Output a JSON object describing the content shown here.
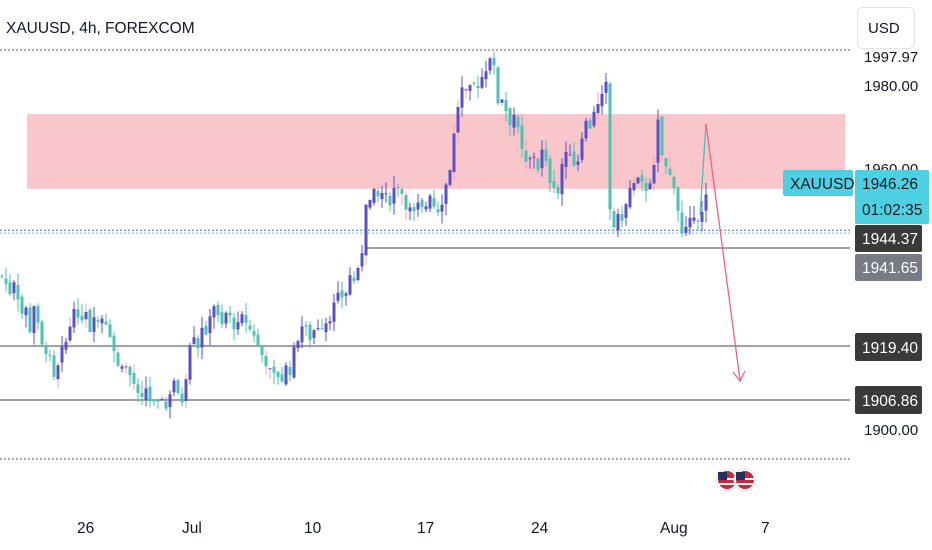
{
  "chart": {
    "title": "XAUUSD, 4h, FOREXCOM",
    "currency_button": "USD",
    "symbol_label": "XAUUSD",
    "price_tag": "1946.26",
    "countdown": "01:02:35",
    "level_tags": [
      "1944.37",
      "1941.65",
      "1919.40",
      "1906.86"
    ],
    "axis_ticks": [
      "1980.00",
      "1960.00",
      "1900.00"
    ],
    "partial_top_tick": "1997.97",
    "x_labels": [
      "26",
      "Jul",
      "10",
      "17",
      "24",
      "Aug",
      "7"
    ],
    "colors": {
      "up": "#5b4fc4",
      "down": "#4fc1b0",
      "resistance_zone": "#f8c6cb",
      "arrow": "#f0627e",
      "price_tag_bg": "#4dd0e1",
      "dark_tag_bg": "#3a3a3a",
      "gray_tag_bg": "#787b86",
      "level_line": "#7e8092"
    }
  },
  "chart_data": {
    "type": "candlestick",
    "symbol": "XAUUSD",
    "timeframe": "4h",
    "source": "FOREXCOM",
    "ylim": [
      1893,
      2000
    ],
    "grid": false,
    "current_price": 1946.26,
    "horizontal_levels": [
      1944.37,
      1941.65,
      1919.4,
      1906.86
    ],
    "dotted_levels": [
      1997.97,
      1945.0,
      1944.3,
      1898.0
    ],
    "resistance_zone": [
      1955.0,
      1973.0
    ],
    "close_path": [
      [
        0,
        1934
      ],
      [
        4,
        1932
      ],
      [
        8,
        1930
      ],
      [
        12,
        1933
      ],
      [
        16,
        1929
      ],
      [
        20,
        1925
      ],
      [
        24,
        1926
      ],
      [
        28,
        1921
      ],
      [
        32,
        1927
      ],
      [
        36,
        1922
      ],
      [
        40,
        1917
      ],
      [
        44,
        1916
      ],
      [
        48,
        1914
      ],
      [
        52,
        1909
      ],
      [
        56,
        1912
      ],
      [
        60,
        1916
      ],
      [
        64,
        1918
      ],
      [
        68,
        1922
      ],
      [
        72,
        1927
      ],
      [
        76,
        1923
      ],
      [
        80,
        1924
      ],
      [
        84,
        1926
      ],
      [
        88,
        1921
      ],
      [
        92,
        1925
      ],
      [
        96,
        1923
      ],
      [
        100,
        1924
      ],
      [
        104,
        1923
      ],
      [
        108,
        1920
      ],
      [
        112,
        1916
      ],
      [
        116,
        1912
      ],
      [
        120,
        1913
      ],
      [
        124,
        1912
      ],
      [
        128,
        1910
      ],
      [
        132,
        1908
      ],
      [
        136,
        1905
      ],
      [
        140,
        1904
      ],
      [
        144,
        1907
      ],
      [
        148,
        1904
      ],
      [
        152,
        1903
      ],
      [
        156,
        1903
      ],
      [
        160,
        1905
      ],
      [
        164,
        1902
      ],
      [
        168,
        1906
      ],
      [
        172,
        1909
      ],
      [
        176,
        1905
      ],
      [
        180,
        1904
      ],
      [
        184,
        1910
      ],
      [
        188,
        1918
      ],
      [
        192,
        1920
      ],
      [
        196,
        1917
      ],
      [
        200,
        1922
      ],
      [
        204,
        1919
      ],
      [
        208,
        1925
      ],
      [
        212,
        1927
      ],
      [
        216,
        1924
      ],
      [
        220,
        1922
      ],
      [
        224,
        1925
      ],
      [
        228,
        1924
      ],
      [
        232,
        1922
      ],
      [
        236,
        1922
      ],
      [
        240,
        1924
      ],
      [
        244,
        1923
      ],
      [
        248,
        1921
      ],
      [
        252,
        1920
      ],
      [
        256,
        1917
      ],
      [
        260,
        1915
      ],
      [
        264,
        1913
      ],
      [
        268,
        1911
      ],
      [
        272,
        1910
      ],
      [
        276,
        1910
      ],
      [
        280,
        1909
      ],
      [
        284,
        1912
      ],
      [
        288,
        1911
      ],
      [
        292,
        1916
      ],
      [
        296,
        1919
      ],
      [
        300,
        1922
      ],
      [
        304,
        1921
      ],
      [
        308,
        1919
      ],
      [
        312,
        1921
      ],
      [
        316,
        1922
      ],
      [
        320,
        1922
      ],
      [
        324,
        1923
      ],
      [
        328,
        1924
      ],
      [
        332,
        1927
      ],
      [
        336,
        1929
      ],
      [
        340,
        1929
      ],
      [
        344,
        1930
      ],
      [
        348,
        1934
      ],
      [
        352,
        1933
      ],
      [
        356,
        1935
      ],
      [
        360,
        1940
      ],
      [
        364,
        1952
      ],
      [
        368,
        1952
      ],
      [
        372,
        1954
      ],
      [
        376,
        1953
      ],
      [
        380,
        1954
      ],
      [
        384,
        1953
      ],
      [
        388,
        1952
      ],
      [
        392,
        1955
      ],
      [
        396,
        1956
      ],
      [
        400,
        1954
      ],
      [
        404,
        1951
      ],
      [
        408,
        1950
      ],
      [
        412,
        1949
      ],
      [
        416,
        1951
      ],
      [
        420,
        1950
      ],
      [
        424,
        1951
      ],
      [
        428,
        1954
      ],
      [
        432,
        1951
      ],
      [
        436,
        1950
      ],
      [
        440,
        1952
      ],
      [
        444,
        1956
      ],
      [
        448,
        1960
      ],
      [
        452,
        1968
      ],
      [
        456,
        1975
      ],
      [
        460,
        1979
      ],
      [
        464,
        1978
      ],
      [
        468,
        1979
      ],
      [
        472,
        1980
      ],
      [
        476,
        1980
      ],
      [
        480,
        1982
      ],
      [
        484,
        1984
      ],
      [
        488,
        1987
      ],
      [
        492,
        1984
      ],
      [
        496,
        1976
      ],
      [
        500,
        1977
      ],
      [
        504,
        1974
      ],
      [
        508,
        1971
      ],
      [
        512,
        1973
      ],
      [
        516,
        1969
      ],
      [
        520,
        1964
      ],
      [
        524,
        1961
      ],
      [
        528,
        1962
      ],
      [
        532,
        1963
      ],
      [
        536,
        1960
      ],
      [
        540,
        1964
      ],
      [
        544,
        1961
      ],
      [
        548,
        1957
      ],
      [
        552,
        1956
      ],
      [
        556,
        1954
      ],
      [
        560,
        1961
      ],
      [
        564,
        1963
      ],
      [
        568,
        1964
      ],
      [
        572,
        1961
      ],
      [
        576,
        1962
      ],
      [
        580,
        1968
      ],
      [
        584,
        1971
      ],
      [
        588,
        1970
      ],
      [
        592,
        1974
      ],
      [
        596,
        1975
      ],
      [
        600,
        1977
      ],
      [
        604,
        1980
      ],
      [
        608,
        1950
      ],
      [
        612,
        1946
      ],
      [
        616,
        1948
      ],
      [
        620,
        1948
      ],
      [
        624,
        1951
      ],
      [
        628,
        1955
      ],
      [
        632,
        1956
      ],
      [
        636,
        1957
      ],
      [
        640,
        1956
      ],
      [
        644,
        1955
      ],
      [
        648,
        1957
      ],
      [
        652,
        1960
      ],
      [
        656,
        1971
      ],
      [
        660,
        1963
      ],
      [
        664,
        1960
      ],
      [
        668,
        1958
      ],
      [
        672,
        1956
      ],
      [
        676,
        1950
      ],
      [
        680,
        1944
      ],
      [
        684,
        1945
      ],
      [
        688,
        1947
      ],
      [
        692,
        1949
      ],
      [
        696,
        1948
      ],
      [
        700,
        1949
      ],
      [
        704,
        1953
      ]
    ]
  }
}
